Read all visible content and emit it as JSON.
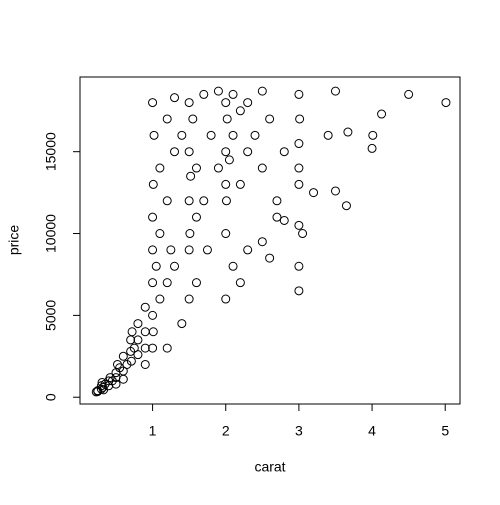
{
  "chart_data": {
    "type": "scatter",
    "x_label": "carat",
    "y_label": "price",
    "xlim": [
      0.008,
      5.202
    ],
    "ylim": [
      -414,
      19563
    ],
    "xticks": [
      1,
      2,
      3,
      4,
      5
    ],
    "yticks": [
      0,
      5000,
      10000,
      15000
    ],
    "series": [
      {
        "color": "#000000",
        "x": [
          0.23,
          0.25,
          0.3,
          0.3,
          0.31,
          0.32,
          0.35,
          0.4,
          0.4,
          0.42,
          0.45,
          0.5,
          0.5,
          0.52,
          0.55,
          0.6,
          0.6,
          0.65,
          0.7,
          0.7,
          0.71,
          0.72,
          0.75,
          0.8,
          0.8,
          0.9,
          0.9,
          0.9,
          1.0,
          1.0,
          1.0,
          1.0,
          1.01,
          1.01,
          1.02,
          1.05,
          1.1,
          1.1,
          1.1,
          1.2,
          1.2,
          1.2,
          1.25,
          1.3,
          1.3,
          1.5,
          1.5,
          1.5,
          1.5,
          1.5,
          1.51,
          1.52,
          1.55,
          1.6,
          1.6,
          1.7,
          1.7,
          1.75,
          1.8,
          1.9,
          2.0,
          2.0,
          2.0,
          2.0,
          2.01,
          2.02,
          2.05,
          2.1,
          2.1,
          2.2,
          2.2,
          2.3,
          2.3,
          2.4,
          2.5,
          2.5,
          2.6,
          2.7,
          2.8,
          3.0,
          3.0,
          3.0,
          3.0,
          3.0,
          3.0,
          3.0,
          3.01,
          3.05,
          3.2,
          3.4,
          3.5,
          3.5,
          3.65,
          3.67,
          4.0,
          4.01,
          4.13,
          4.5,
          5.01,
          1.4,
          1.2,
          0.9,
          2.3,
          2.2,
          2.5,
          2.0,
          2.6,
          2.7,
          2.8,
          1.9,
          1.0,
          1.3,
          0.25,
          0.5,
          0.33,
          0.6,
          0.8,
          1.4,
          1.0,
          1.6,
          2.1
        ],
        "values": [
          326,
          400,
          500,
          700,
          900,
          600,
          800,
          1000,
          700,
          1200,
          1000,
          1500,
          1200,
          2000,
          1800,
          2500,
          1600,
          2000,
          2800,
          3500,
          2200,
          4000,
          3000,
          3500,
          4500,
          4000,
          5500,
          3000,
          5000,
          7000,
          9000,
          11000,
          4000,
          13000,
          16000,
          8000,
          6000,
          10000,
          14000,
          7000,
          12000,
          17000,
          9000,
          8000,
          15000,
          6000,
          9000,
          12000,
          15000,
          18000,
          10000,
          13500,
          17000,
          11000,
          14000,
          12000,
          18500,
          9000,
          16000,
          14000,
          10000,
          13000,
          15000,
          18000,
          12000,
          17000,
          14500,
          16000,
          18500,
          13000,
          17500,
          15000,
          18000,
          16000,
          14000,
          18700,
          17000,
          12000,
          15000,
          6500,
          8000,
          10500,
          13000,
          14000,
          15500,
          18500,
          17000,
          10000,
          12500,
          16000,
          12600,
          18700,
          11700,
          16200,
          15200,
          16000,
          17300,
          18500,
          18000,
          4500,
          3000,
          2000,
          9000,
          7000,
          9500,
          6000,
          8500,
          11000,
          10800,
          18700,
          18000,
          18300,
          350,
          800,
          450,
          1100,
          2600,
          16000,
          3000,
          7000,
          8000
        ]
      }
    ]
  }
}
